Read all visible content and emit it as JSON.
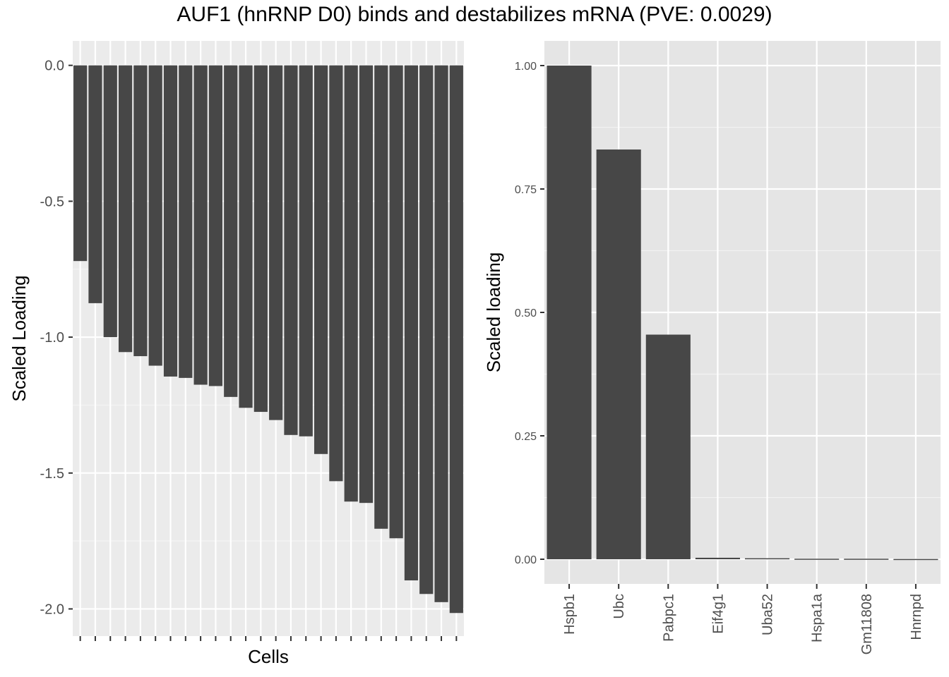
{
  "figure": {
    "title": "AUF1 (hnRNP D0) binds and destabilizes mRNA (PVE: 0.0029)"
  },
  "chart_data": [
    {
      "type": "bar",
      "xlabel": "Cells",
      "ylabel": "Scaled Loading",
      "ylim": [
        -2.1,
        0.09
      ],
      "yticks": [
        0.0,
        -0.5,
        -1.0,
        -1.5,
        -2.0
      ],
      "ytick_labels": [
        "0.0",
        "-0.5",
        "-1.0",
        "-1.5",
        "-2.0"
      ],
      "categories_count": 26,
      "values": [
        -0.72,
        -0.875,
        -1.0,
        -1.055,
        -1.07,
        -1.105,
        -1.145,
        -1.15,
        -1.175,
        -1.18,
        -1.22,
        -1.26,
        -1.275,
        -1.305,
        -1.36,
        -1.365,
        -1.43,
        -1.53,
        -1.605,
        -1.61,
        -1.705,
        -1.74,
        -1.895,
        -1.945,
        -1.975,
        -2.015
      ],
      "bar_color": "#474747",
      "panel_background": "#ebebeb",
      "grid": true
    },
    {
      "type": "bar",
      "xlabel": "",
      "ylabel": "Scaled loading",
      "ylim": [
        -0.05,
        1.05
      ],
      "yticks": [
        0.0,
        0.25,
        0.5,
        0.75,
        1.0
      ],
      "ytick_labels": [
        "0.00",
        "0.25",
        "0.50",
        "0.75",
        "1.00"
      ],
      "categories": [
        "Hspb1",
        "Ubc",
        "Pabpc1",
        "Eif4g1",
        "Uba52",
        "Hspa1a",
        "Gm11808",
        "Hnrnpd"
      ],
      "values": [
        1.0,
        0.83,
        0.455,
        0.003,
        0.002,
        0.001,
        0.001,
        0.0005
      ],
      "bar_color": "#474747",
      "panel_background": "#e5e5e5",
      "grid": true
    }
  ]
}
